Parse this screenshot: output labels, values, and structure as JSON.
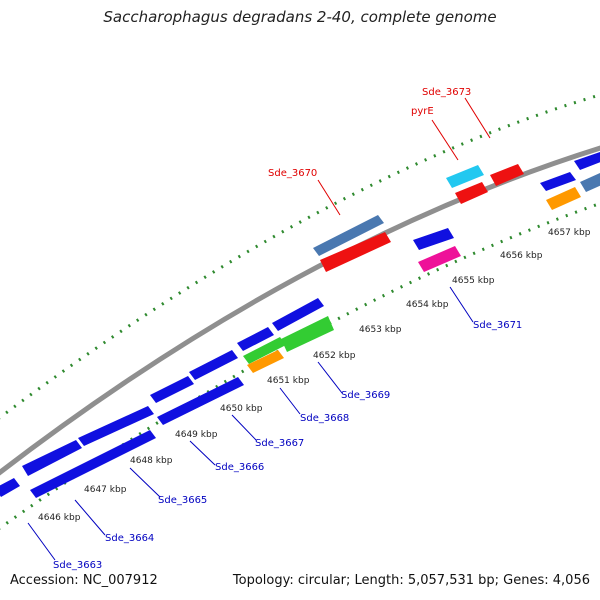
{
  "title": "Saccharophagus degradans 2-40, complete genome",
  "footer": {
    "accession": "Accession: NC_007912",
    "summary": "Topology: circular; Length: 5,057,531 bp; Genes: 4,056"
  },
  "colors": {
    "backbone": "#8f8f8f",
    "tick_green": "#2f8a2f",
    "red_label": "#e00000",
    "blue_label": "#0000c0",
    "blue_gene": "#1010e0",
    "red_gene": "#ee1111",
    "steel_gene": "#4a78b0",
    "cyan_gene": "#22c8f0",
    "green_gene": "#33cc33",
    "orange_gene": "#ff9900",
    "pink_gene": "#ee1199"
  },
  "scale": {
    "ticks": [
      "4646 kbp",
      "4647 kbp",
      "4648 kbp",
      "4649 kbp",
      "4650 kbp",
      "4651 kbp",
      "4652 kbp",
      "4653 kbp",
      "4654 kbp",
      "4655 kbp",
      "4656 kbp",
      "4657 kbp"
    ]
  },
  "genes": [
    {
      "name": "Sde_3663",
      "color": "blue_label"
    },
    {
      "name": "Sde_3664",
      "color": "blue_label"
    },
    {
      "name": "Sde_3665",
      "color": "blue_label"
    },
    {
      "name": "Sde_3666",
      "color": "blue_label"
    },
    {
      "name": "Sde_3667",
      "color": "blue_label"
    },
    {
      "name": "Sde_3668",
      "color": "blue_label"
    },
    {
      "name": "Sde_3669",
      "color": "blue_label"
    },
    {
      "name": "Sde_3671",
      "color": "blue_label"
    },
    {
      "name": "Sde_3670",
      "color": "red_label"
    },
    {
      "name": "pyrE",
      "color": "red_label"
    },
    {
      "name": "Sde_3673",
      "color": "red_label"
    }
  ]
}
